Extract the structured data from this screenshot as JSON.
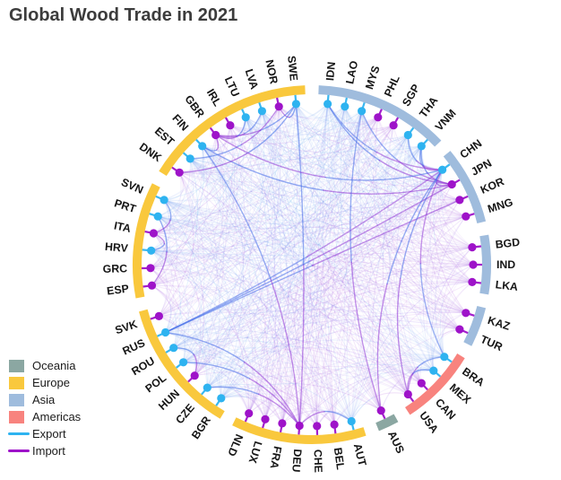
{
  "title": "Global Wood Trade in 2021",
  "colors": {
    "title": "#3c3c3c",
    "label": "#151515",
    "export": "#2eb3f0",
    "import": "#9e13c9",
    "continents": {
      "Oceania": "#8ba7a2",
      "Europe": "#f9c83d",
      "Asia": "#9fbcdd",
      "Americas": "#f8837e"
    },
    "edge_export_shades": [
      "#5c85ee",
      "#4aa2ee",
      "#6d79e9",
      "#83a6f2"
    ],
    "edge_import_shades": [
      "#9a55de",
      "#a43fd8",
      "#8b61e8",
      "#b273e2"
    ],
    "edge_export_strong": "#3e68e8",
    "edge_import_strong": "#8d2fd4"
  },
  "legend": [
    {
      "label": "Oceania",
      "type": "swatch",
      "color": "#8ba7a2"
    },
    {
      "label": "Europe",
      "type": "swatch",
      "color": "#f9c83d"
    },
    {
      "label": "Asia",
      "type": "swatch",
      "color": "#9fbcdd"
    },
    {
      "label": "Americas",
      "type": "swatch",
      "color": "#f8837e"
    },
    {
      "label": "Export",
      "type": "line",
      "color": "#2eb3f0"
    },
    {
      "label": "Import",
      "type": "line",
      "color": "#9e13c9"
    }
  ],
  "chart_data": {
    "type": "chord",
    "title": "Global Wood Trade in 2021",
    "legend_position": "bottom-left",
    "description": "Circular hierarchical edge-bundling diagram; countries sit on a circle in continent arc segments, cyan dots mark exporters, purple dots mark importers, and curved semi-transparent edges (blue at the export end, purple at the import end) link exporters to importers.",
    "groups": [
      {
        "continent": "Asia",
        "nodes": [
          {
            "code": "IDN",
            "role": "export"
          },
          {
            "code": "LAO",
            "role": "export"
          },
          {
            "code": "MYS",
            "role": "export"
          },
          {
            "code": "PHL",
            "role": "import"
          },
          {
            "code": "SGP",
            "role": "import"
          },
          {
            "code": "THA",
            "role": "export"
          },
          {
            "code": "VNM",
            "role": "export"
          }
        ]
      },
      {
        "continent": "Asia",
        "nodes": [
          {
            "code": "CHN",
            "role": "export"
          },
          {
            "code": "JPN",
            "role": "import"
          },
          {
            "code": "KOR",
            "role": "import"
          },
          {
            "code": "MNG",
            "role": "import"
          }
        ]
      },
      {
        "continent": "Asia",
        "nodes": [
          {
            "code": "BGD",
            "role": "import"
          },
          {
            "code": "IND",
            "role": "import"
          },
          {
            "code": "LKA",
            "role": "import"
          }
        ]
      },
      {
        "continent": "Asia",
        "nodes": [
          {
            "code": "KAZ",
            "role": "import"
          },
          {
            "code": "TUR",
            "role": "import"
          }
        ]
      },
      {
        "continent": "Americas",
        "nodes": [
          {
            "code": "BRA",
            "role": "export"
          },
          {
            "code": "MEX",
            "role": "export"
          },
          {
            "code": "CAN",
            "role": "import"
          },
          {
            "code": "USA",
            "role": "import"
          }
        ]
      },
      {
        "continent": "Oceania",
        "nodes": [
          {
            "code": "AUS",
            "role": "import"
          }
        ]
      },
      {
        "continent": "Europe",
        "nodes": [
          {
            "code": "AUT",
            "role": "export"
          },
          {
            "code": "BEL",
            "role": "import"
          },
          {
            "code": "CHE",
            "role": "import"
          },
          {
            "code": "DEU",
            "role": "import"
          },
          {
            "code": "FRA",
            "role": "import"
          },
          {
            "code": "LUX",
            "role": "import"
          },
          {
            "code": "NLD",
            "role": "import"
          }
        ]
      },
      {
        "continent": "Europe",
        "nodes": [
          {
            "code": "BGR",
            "role": "export"
          },
          {
            "code": "CZE",
            "role": "export"
          },
          {
            "code": "HUN",
            "role": "import"
          },
          {
            "code": "POL",
            "role": "export"
          },
          {
            "code": "ROU",
            "role": "export"
          },
          {
            "code": "RUS",
            "role": "export"
          },
          {
            "code": "SVK",
            "role": "import"
          }
        ]
      },
      {
        "continent": "Europe",
        "nodes": [
          {
            "code": "ESP",
            "role": "import"
          },
          {
            "code": "GRC",
            "role": "import"
          },
          {
            "code": "HRV",
            "role": "export"
          },
          {
            "code": "ITA",
            "role": "import"
          },
          {
            "code": "PRT",
            "role": "export"
          },
          {
            "code": "SVN",
            "role": "export"
          }
        ]
      },
      {
        "continent": "Europe",
        "nodes": [
          {
            "code": "DNK",
            "role": "import"
          },
          {
            "code": "EST",
            "role": "export"
          },
          {
            "code": "FIN",
            "role": "export"
          },
          {
            "code": "GBR",
            "role": "import"
          },
          {
            "code": "IRL",
            "role": "import"
          },
          {
            "code": "LTU",
            "role": "export"
          },
          {
            "code": "LVA",
            "role": "export"
          },
          {
            "code": "NOR",
            "role": "import"
          },
          {
            "code": "SWE",
            "role": "export"
          }
        ]
      }
    ],
    "highlight_links": [
      [
        "RUS",
        "CHN"
      ],
      [
        "RUS",
        "JPN"
      ],
      [
        "RUS",
        "KOR"
      ],
      [
        "RUS",
        "DEU"
      ],
      [
        "FIN",
        "GBR"
      ],
      [
        "FIN",
        "DEU"
      ],
      [
        "FIN",
        "JPN"
      ],
      [
        "SWE",
        "GBR"
      ],
      [
        "SWE",
        "NOR"
      ],
      [
        "SWE",
        "DNK"
      ],
      [
        "SWE",
        "DEU"
      ],
      [
        "LVA",
        "GBR"
      ],
      [
        "LTU",
        "GBR"
      ],
      [
        "EST",
        "NOR"
      ],
      [
        "POL",
        "DEU"
      ],
      [
        "CZE",
        "DEU"
      ],
      [
        "AUT",
        "DEU"
      ],
      [
        "ROU",
        "HUN"
      ],
      [
        "HRV",
        "ITA"
      ],
      [
        "PRT",
        "ESP"
      ],
      [
        "SVN",
        "ITA"
      ],
      [
        "THA",
        "CHN"
      ],
      [
        "VNM",
        "JPN"
      ],
      [
        "VNM",
        "CHN"
      ],
      [
        "IDN",
        "JPN"
      ],
      [
        "IDN",
        "CHN"
      ],
      [
        "MYS",
        "JPN"
      ],
      [
        "MYS",
        "AUS"
      ],
      [
        "CHN",
        "USA"
      ],
      [
        "CHN",
        "JPN"
      ],
      [
        "CHN",
        "GBR"
      ],
      [
        "CHN",
        "AUS"
      ],
      [
        "BRA",
        "CHN"
      ],
      [
        "BRA",
        "USA"
      ],
      [
        "MEX",
        "USA"
      ]
    ]
  }
}
